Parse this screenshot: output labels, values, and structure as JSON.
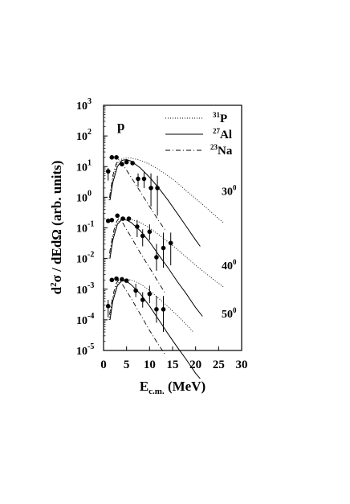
{
  "chart_data": {
    "type": "scatter",
    "title": "",
    "panel_label": "p",
    "xlabel": {
      "main": "E",
      "sub": "c.m.",
      "tail": " (MeV)"
    },
    "ylabel": {
      "pre": "d",
      "sup": "2",
      "mid": "σ / dEdΩ  (arb. units)"
    },
    "xlim": [
      0,
      30
    ],
    "ylim_log10": [
      -5,
      3
    ],
    "y_scale": "log",
    "x_ticks": [
      0,
      5,
      10,
      15,
      20,
      25,
      30
    ],
    "x_tick_labels": [
      "0",
      "5",
      "10",
      "15",
      "20",
      "25",
      "30"
    ],
    "y_tick_labels": [
      {
        "exp": -5,
        "base": "10",
        "sup": "-5"
      },
      {
        "exp": -4,
        "base": "10",
        "sup": "-4"
      },
      {
        "exp": -3,
        "base": "10",
        "sup": "-3"
      },
      {
        "exp": -2,
        "base": "10",
        "sup": "-2"
      },
      {
        "exp": -1,
        "base": "10",
        "sup": "-1"
      },
      {
        "exp": 0,
        "base": "10",
        "sup": "0"
      },
      {
        "exp": 1,
        "base": "10",
        "sup": "1"
      },
      {
        "exp": 2,
        "base": "10",
        "sup": "2"
      },
      {
        "exp": 3,
        "base": "10",
        "sup": "3"
      }
    ],
    "legend": {
      "placement": "top-right",
      "entries": [
        {
          "sup": "31",
          "label": "P",
          "style": "dotted"
        },
        {
          "sup": "27",
          "label": "Al",
          "style": "solid"
        },
        {
          "sup": "23",
          "label": "Na",
          "style": "dashdot"
        }
      ]
    },
    "panels": [
      {
        "angle": "30",
        "angle_sup": "0",
        "angle_label_y": 1.6,
        "points": [
          {
            "x": 1.0,
            "y": 7.0,
            "lo": 3.5,
            "hi": 9.0
          },
          {
            "x": 1.8,
            "y": 20.0
          },
          {
            "x": 2.8,
            "y": 20.0
          },
          {
            "x": 4.0,
            "y": 12.0
          },
          {
            "x": 5.0,
            "y": 14.0
          },
          {
            "x": 6.3,
            "y": 13.0
          },
          {
            "x": 7.5,
            "y": 4.0,
            "lo": 2.2,
            "hi": 6.0
          },
          {
            "x": 8.8,
            "y": 4.0,
            "lo": 2.0,
            "hi": 6.5
          },
          {
            "x": 10.3,
            "y": 2.0,
            "lo": 0.5,
            "hi": 6.0
          },
          {
            "x": 11.7,
            "y": 2.0,
            "lo": 0.25,
            "hi": 5.0
          }
        ],
        "curves": {
          "P": [
            [
              1.2,
              0.8
            ],
            [
              2,
              4
            ],
            [
              3,
              13
            ],
            [
              4,
              18
            ],
            [
              5,
              19
            ],
            [
              6,
              19
            ],
            [
              8,
              16
            ],
            [
              10,
              12
            ],
            [
              12,
              8
            ],
            [
              14,
              5
            ],
            [
              16,
              3
            ],
            [
              18,
              1.6
            ],
            [
              20,
              0.9
            ],
            [
              22,
              0.5
            ],
            [
              24,
              0.27
            ],
            [
              26,
              0.15
            ]
          ],
          "Al": [
            [
              1.4,
              0.8
            ],
            [
              2,
              3
            ],
            [
              3,
              10
            ],
            [
              4,
              16
            ],
            [
              5,
              17
            ],
            [
              6,
              15
            ],
            [
              8,
              9
            ],
            [
              10,
              4.5
            ],
            [
              12,
              2
            ],
            [
              14,
              0.8
            ],
            [
              16,
              0.3
            ],
            [
              18,
              0.11
            ],
            [
              20,
              0.04
            ],
            [
              21,
              0.025
            ]
          ],
          "Na": [
            [
              1.3,
              1
            ],
            [
              2,
              5
            ],
            [
              2.7,
              12
            ],
            [
              3.3,
              17
            ],
            [
              4,
              13
            ],
            [
              6,
              4.5
            ],
            [
              8,
              1.5
            ],
            [
              10,
              0.5
            ],
            [
              12,
              0.17
            ],
            [
              13.5,
              0.08
            ]
          ]
        }
      },
      {
        "angle": "40",
        "angle_sup": "0",
        "angle_label_y": 0.006,
        "points": [
          {
            "x": 1.0,
            "y": 0.17
          },
          {
            "x": 1.8,
            "y": 0.18
          },
          {
            "x": 3.0,
            "y": 0.25
          },
          {
            "x": 4.2,
            "y": 0.2
          },
          {
            "x": 5.5,
            "y": 0.2
          },
          {
            "x": 7.3,
            "y": 0.11,
            "lo": 0.05,
            "hi": 0.18
          },
          {
            "x": 8.5,
            "y": 0.055,
            "lo": 0.025,
            "hi": 0.09
          },
          {
            "x": 10.0,
            "y": 0.075,
            "lo": 0.04,
            "hi": 0.13
          },
          {
            "x": 11.5,
            "y": 0.011,
            "lo": 0.004,
            "hi": 0.03
          },
          {
            "x": 13.0,
            "y": 0.022,
            "lo": 0.005,
            "hi": 0.07
          },
          {
            "x": 14.6,
            "y": 0.032,
            "lo": 0.006,
            "hi": 0.07
          }
        ],
        "curves": {
          "P": [
            [
              1.2,
              0.01
            ],
            [
              2,
              0.05
            ],
            [
              3,
              0.15
            ],
            [
              4,
              0.2
            ],
            [
              5,
              0.2
            ],
            [
              6,
              0.19
            ],
            [
              8,
              0.15
            ],
            [
              10,
              0.1
            ],
            [
              12,
              0.06
            ],
            [
              14,
              0.035
            ],
            [
              16,
              0.02
            ],
            [
              18,
              0.011
            ],
            [
              20,
              0.006
            ],
            [
              22,
              0.0035
            ],
            [
              24,
              0.002
            ],
            [
              26,
              0.0012
            ]
          ],
          "Al": [
            [
              1.4,
              0.01
            ],
            [
              2,
              0.04
            ],
            [
              3,
              0.13
            ],
            [
              4,
              0.19
            ],
            [
              5,
              0.18
            ],
            [
              6,
              0.15
            ],
            [
              8,
              0.08
            ],
            [
              10,
              0.035
            ],
            [
              12,
              0.013
            ],
            [
              14,
              0.005
            ],
            [
              16,
              0.0018
            ],
            [
              18,
              0.0007
            ],
            [
              20,
              0.00025
            ],
            [
              21.5,
              0.00013
            ]
          ],
          "Na": [
            [
              1.3,
              0.015
            ],
            [
              2,
              0.06
            ],
            [
              2.7,
              0.15
            ],
            [
              3.3,
              0.2
            ],
            [
              4,
              0.16
            ],
            [
              6,
              0.05
            ],
            [
              8,
              0.015
            ],
            [
              10,
              0.005
            ],
            [
              12,
              0.0016
            ],
            [
              13.5,
              0.0007
            ]
          ]
        }
      },
      {
        "angle": "50",
        "angle_sup": "0",
        "angle_label_y": 0.00016,
        "points": [
          {
            "x": 1.0,
            "y": 0.00028,
            "lo": 0.00012,
            "hi": 0.00045
          },
          {
            "x": 1.8,
            "y": 0.002
          },
          {
            "x": 2.8,
            "y": 0.0022
          },
          {
            "x": 4.0,
            "y": 0.0021
          },
          {
            "x": 5.0,
            "y": 0.0019
          },
          {
            "x": 7.0,
            "y": 0.0009,
            "lo": 0.00055,
            "hi": 0.0015
          },
          {
            "x": 8.5,
            "y": 0.00045,
            "lo": 0.00025,
            "hi": 0.0008
          },
          {
            "x": 10.0,
            "y": 0.0007,
            "lo": 0.00035,
            "hi": 0.0013
          },
          {
            "x": 11.5,
            "y": 0.00022,
            "lo": 8e-05,
            "hi": 0.0006
          },
          {
            "x": 13.0,
            "y": 0.00022,
            "lo": 4e-05,
            "hi": 0.0006
          }
        ],
        "curves": {
          "P": [
            [
              1.2,
              0.0001
            ],
            [
              2,
              0.0005
            ],
            [
              3,
              0.0015
            ],
            [
              4,
              0.002
            ],
            [
              5,
              0.0021
            ],
            [
              6,
              0.002
            ],
            [
              8,
              0.0015
            ],
            [
              10,
              0.0009
            ],
            [
              12,
              0.0005
            ],
            [
              14,
              0.00027
            ],
            [
              16,
              0.00014
            ],
            [
              18,
              7e-05
            ],
            [
              19.5,
              4e-05
            ]
          ],
          "Al": [
            [
              1.4,
              0.0001
            ],
            [
              2,
              0.0004
            ],
            [
              3,
              0.0013
            ],
            [
              4,
              0.0019
            ],
            [
              5,
              0.0018
            ],
            [
              6,
              0.0014
            ],
            [
              8,
              0.0007
            ],
            [
              10,
              0.00028
            ],
            [
              12,
              0.0001
            ],
            [
              14,
              3.5e-05
            ],
            [
              16,
              1.3e-05
            ],
            [
              18,
              5e-06
            ],
            [
              20,
              1.8e-06
            ],
            [
              21,
              1.2e-06
            ]
          ],
          "Na": [
            [
              1.3,
              0.00015
            ],
            [
              2,
              0.0006
            ],
            [
              2.7,
              0.0015
            ],
            [
              3.3,
              0.002
            ],
            [
              4,
              0.0015
            ],
            [
              6,
              0.0005
            ],
            [
              8,
              0.00015
            ],
            [
              10,
              4.5e-05
            ],
            [
              12,
              1.5e-05
            ],
            [
              13.5,
              7e-06
            ]
          ]
        }
      }
    ]
  }
}
